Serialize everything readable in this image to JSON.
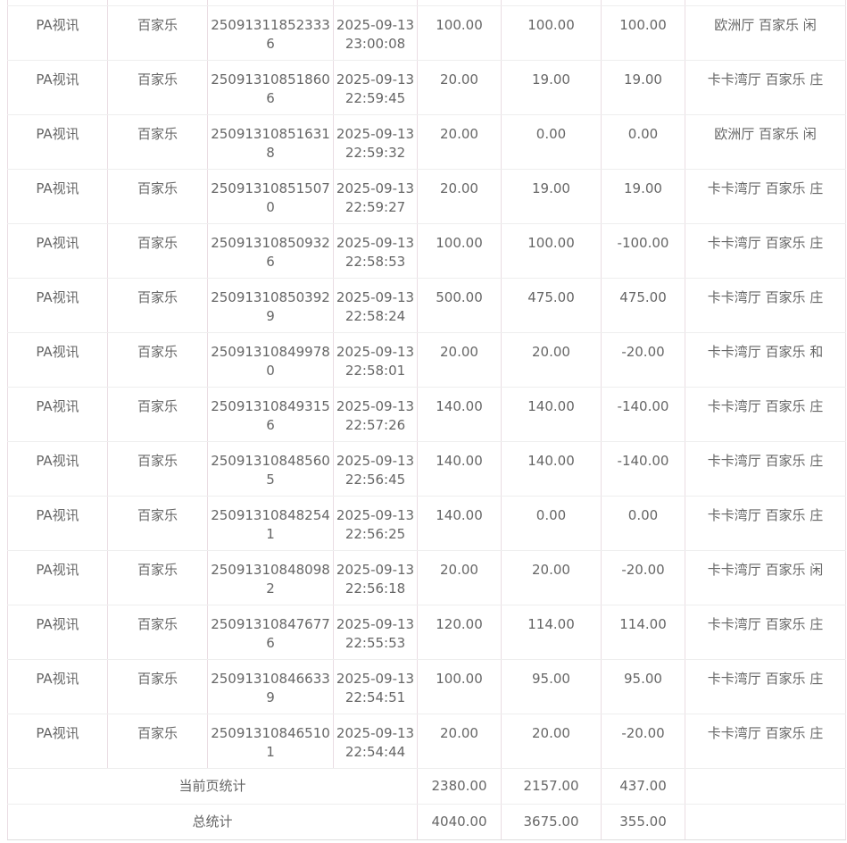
{
  "table": {
    "rows": [
      [
        "",
        "",
        "",
        "",
        "",
        "",
        "",
        ""
      ],
      [
        "PA视讯",
        "百家乐",
        "250913118523336",
        "2025-09-13 23:00:08",
        "100.00",
        "100.00",
        "100.00",
        "欧洲厅 百家乐 闲"
      ],
      [
        "PA视讯",
        "百家乐",
        "250913108518606",
        "2025-09-13 22:59:45",
        "20.00",
        "19.00",
        "19.00",
        "卡卡湾厅 百家乐 庄"
      ],
      [
        "PA视讯",
        "百家乐",
        "250913108516318",
        "2025-09-13 22:59:32",
        "20.00",
        "0.00",
        "0.00",
        "欧洲厅 百家乐 闲"
      ],
      [
        "PA视讯",
        "百家乐",
        "250913108515070",
        "2025-09-13 22:59:27",
        "20.00",
        "19.00",
        "19.00",
        "卡卡湾厅 百家乐 庄"
      ],
      [
        "PA视讯",
        "百家乐",
        "250913108509326",
        "2025-09-13 22:58:53",
        "100.00",
        "100.00",
        "-100.00",
        "卡卡湾厅 百家乐 庄"
      ],
      [
        "PA视讯",
        "百家乐",
        "250913108503929",
        "2025-09-13 22:58:24",
        "500.00",
        "475.00",
        "475.00",
        "卡卡湾厅 百家乐 庄"
      ],
      [
        "PA视讯",
        "百家乐",
        "250913108499780",
        "2025-09-13 22:58:01",
        "20.00",
        "20.00",
        "-20.00",
        "卡卡湾厅 百家乐 和"
      ],
      [
        "PA视讯",
        "百家乐",
        "250913108493156",
        "2025-09-13 22:57:26",
        "140.00",
        "140.00",
        "-140.00",
        "卡卡湾厅 百家乐 庄"
      ],
      [
        "PA视讯",
        "百家乐",
        "250913108485605",
        "2025-09-13 22:56:45",
        "140.00",
        "140.00",
        "-140.00",
        "卡卡湾厅 百家乐 庄"
      ],
      [
        "PA视讯",
        "百家乐",
        "250913108482541",
        "2025-09-13 22:56:25",
        "140.00",
        "0.00",
        "0.00",
        "卡卡湾厅 百家乐 庄"
      ],
      [
        "PA视讯",
        "百家乐",
        "250913108480982",
        "2025-09-13 22:56:18",
        "20.00",
        "20.00",
        "-20.00",
        "卡卡湾厅 百家乐 闲"
      ],
      [
        "PA视讯",
        "百家乐",
        "250913108476776",
        "2025-09-13 22:55:53",
        "120.00",
        "114.00",
        "114.00",
        "卡卡湾厅 百家乐 庄"
      ],
      [
        "PA视讯",
        "百家乐",
        "250913108466339",
        "2025-09-13 22:54:51",
        "100.00",
        "95.00",
        "95.00",
        "卡卡湾厅 百家乐 庄"
      ],
      [
        "PA视讯",
        "百家乐",
        "250913108465101",
        "2025-09-13 22:54:44",
        "20.00",
        "20.00",
        "-20.00",
        "卡卡湾厅 百家乐 庄"
      ]
    ],
    "summary": [
      {
        "label": "当前页统计",
        "bet": "2380.00",
        "valid": "2157.00",
        "win": "437.00"
      },
      {
        "label": "总统计",
        "bet": "4040.00",
        "valid": "3675.00",
        "win": "355.00"
      }
    ]
  }
}
